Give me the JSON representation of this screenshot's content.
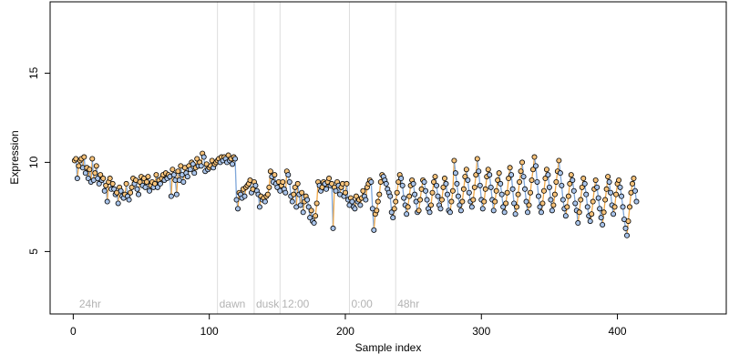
{
  "chart_data": {
    "type": "scatter",
    "xlabel": "Sample index",
    "ylabel": "Expression",
    "xlim": [
      -17,
      480
    ],
    "ylim": [
      1.5,
      19
    ],
    "x_ticks": [
      0,
      100,
      200,
      300,
      400
    ],
    "y_ticks": [
      5,
      10,
      15
    ],
    "grid": false,
    "annotations": [
      {
        "label": "24hr",
        "x": 3
      },
      {
        "label": "dawn",
        "x": 106
      },
      {
        "label": "dusk",
        "x": 133
      },
      {
        "label": "12:00",
        "x": 152
      },
      {
        "label": "0:00",
        "x": 203
      },
      {
        "label": "48hr",
        "x": 237
      }
    ],
    "vlines": [
      106,
      133,
      152,
      203,
      237
    ],
    "point_x_start": 1,
    "y": [
      10.1,
      10.2,
      9.1,
      9.8,
      10.1,
      10.2,
      9.7,
      10.3,
      9.4,
      9.7,
      9.1,
      9.6,
      8.9,
      10.2,
      9.0,
      9.4,
      9.8,
      9.1,
      8.8,
      9.3,
      9.0,
      9.1,
      8.4,
      8.7,
      7.8,
      8.9,
      9.1,
      8.5,
      8.8,
      8.5,
      8.2,
      8.3,
      7.7,
      8.6,
      8.4,
      8.1,
      8.0,
      8.2,
      8.8,
      8.1,
      7.9,
      8.3,
      8.6,
      9.1,
      8.8,
      9.0,
      8.5,
      8.2,
      8.9,
      9.2,
      8.7,
      9.1,
      8.6,
      8.9,
      9.2,
      8.4,
      8.7,
      8.9,
      8.6,
      8.8,
      9.3,
      8.6,
      9.0,
      8.8,
      9.1,
      9.3,
      9.0,
      9.4,
      9.1,
      9.3,
      9.2,
      8.1,
      9.6,
      9.3,
      9.0,
      8.2,
      9.5,
      9.0,
      9.8,
      9.3,
      8.9,
      9.7,
      9.4,
      9.2,
      9.8,
      9.6,
      10.0,
      9.9,
      9.4,
      9.7,
      10.2,
      9.8,
      10.0,
      9.8,
      10.5,
      10.3,
      9.5,
      9.9,
      9.6,
      9.7,
      9.8,
      10.1,
      9.7,
      9.9,
      10.0,
      10.1,
      10.2,
      10.0,
      10.3,
      10.1,
      10.3,
      10.2,
      10.0,
      10.4,
      10.1,
      10.2,
      9.9,
      10.3,
      10.2,
      7.9,
      7.4,
      8.3,
      8.2,
      8.0,
      8.5,
      8.1,
      8.6,
      8.7,
      8.8,
      9.0,
      8.3,
      8.5,
      8.9,
      8.7,
      8.4,
      8.2,
      7.5,
      8.1,
      7.9,
      8.0,
      7.8,
      8.1,
      8.2,
      8.6,
      9.5,
      9.2,
      8.9,
      9.3,
      8.8,
      8.6,
      8.9,
      8.4,
      8.7,
      8.9,
      8.5,
      8.3,
      9.5,
      9.3,
      8.9,
      8.1,
      7.8,
      8.2,
      8.6,
      7.5,
      8.8,
      8.2,
      7.6,
      8.3,
      7.2,
      7.8,
      8.1,
      7.9,
      7.5,
      6.9,
      7.3,
      6.7,
      6.6,
      7.0,
      7.7,
      8.9,
      8.7,
      8.4,
      8.6,
      8.9,
      8.8,
      8.5,
      8.9,
      9.1,
      8.7,
      8.8,
      6.3,
      8.6,
      8.4,
      8.9,
      8.7,
      8.2,
      8.6,
      8.8,
      8.1,
      8.3,
      8.8,
      7.9,
      7.6,
      8.0,
      7.8,
      7.5,
      7.4,
      8.1,
      7.8,
      7.9,
      7.6,
      8.0,
      8.4,
      8.1,
      7.9,
      8.6,
      8.8,
      9.0,
      8.9,
      7.4,
      6.2,
      7.1,
      7.3,
      7.8,
      8.2,
      8.9,
      9.3,
      9.2,
      9.0,
      8.8,
      8.5,
      8.3,
      8.1,
      7.2,
      6.9,
      7.4,
      7.8,
      8.3,
      8.9,
      9.3,
      9.1,
      8.7,
      8.0,
      7.6,
      7.1,
      7.5,
      8.1,
      8.7,
      9.0,
      8.8,
      8.2,
      7.8,
      7.2,
      7.3,
      7.9,
      8.5,
      9.0,
      8.9,
      8.4,
      7.9,
      7.4,
      7.2,
      7.6,
      8.3,
      8.9,
      9.2,
      8.7,
      8.1,
      7.6,
      7.4,
      7.9,
      8.6,
      9.1,
      8.8,
      8.2,
      7.3,
      7.2,
      7.8,
      8.4,
      10.1,
      9.4,
      8.8,
      8.1,
      7.6,
      7.3,
      7.8,
      8.5,
      9.2,
      9.6,
      9.0,
      8.3,
      7.8,
      7.5,
      7.9,
      8.6,
      9.3,
      10.2,
      9.5,
      8.7,
      7.9,
      7.4,
      7.8,
      8.5,
      9.2,
      9.6,
      9.3,
      8.6,
      7.9,
      7.3,
      7.8,
      8.4,
      9.0,
      9.4,
      8.8,
      8.2,
      7.5,
      7.2,
      7.7,
      8.3,
      9.1,
      9.7,
      9.3,
      8.5,
      7.7,
      7.1,
      7.5,
      8.2,
      8.9,
      9.5,
      10.0,
      9.2,
      8.5,
      7.8,
      7.2,
      7.6,
      8.3,
      9.0,
      9.6,
      10.3,
      9.8,
      8.9,
      8.1,
      7.5,
      7.2,
      7.7,
      8.4,
      9.1,
      9.6,
      9.3,
      8.6,
      7.9,
      7.3,
      7.6,
      8.2,
      8.9,
      9.5,
      10.1,
      9.4,
      8.7,
      7.9,
      7.4,
      7.0,
      7.5,
      8.1,
      8.8,
      9.3,
      9.0,
      8.4,
      7.7,
      7.3,
      6.6,
      7.2,
      7.9,
      8.6,
      9.1,
      8.8,
      8.2,
      7.5,
      7.0,
      6.7,
      7.1,
      7.8,
      8.5,
      9.0,
      8.6,
      8.0,
      7.4,
      6.9,
      6.5,
      7.2,
      7.9,
      8.5,
      9.2,
      8.9,
      8.3,
      7.6,
      7.1,
      7.5,
      8.2,
      8.8,
      9.0,
      8.6,
      8.1,
      7.5,
      6.8,
      6.3,
      5.9,
      6.7,
      7.5,
      8.3,
      8.8,
      9.1,
      8.4,
      7.8
    ]
  }
}
